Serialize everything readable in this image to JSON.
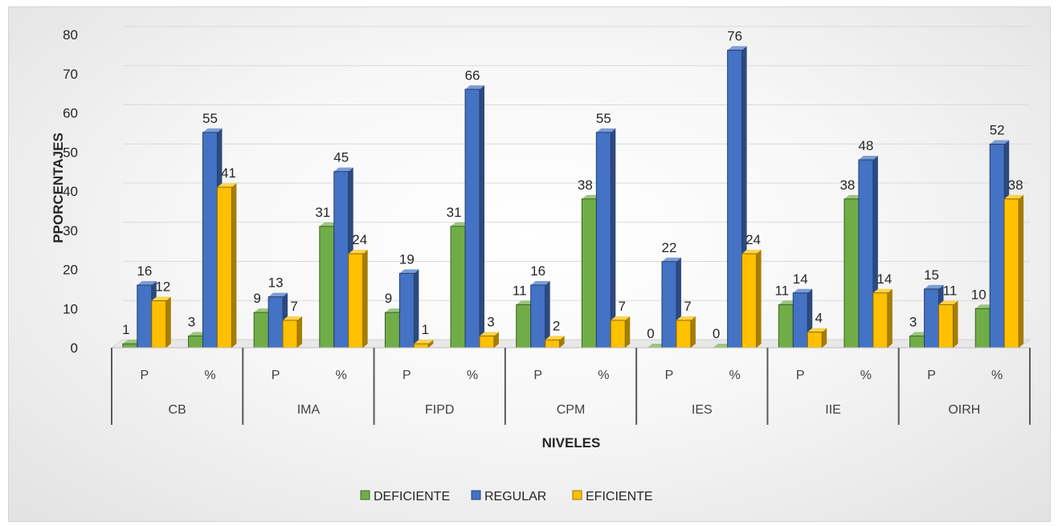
{
  "chart_data": {
    "type": "bar",
    "xlabel": "NIVELES",
    "ylabel": "PPORCENTAJES",
    "ylim": [
      0,
      80
    ],
    "yticks": [
      0,
      10,
      20,
      30,
      40,
      50,
      60,
      70,
      80
    ],
    "groups": [
      "CB",
      "IMA",
      "FIPD",
      "CPM",
      "IES",
      "IIE",
      "OIRH"
    ],
    "subcategories": [
      "P",
      "%"
    ],
    "legend_position": "bottom",
    "series": [
      {
        "name": "DEFICIENTE",
        "color": "#70ad47",
        "values": [
          1,
          3,
          9,
          31,
          9,
          31,
          11,
          38,
          0,
          0,
          11,
          38,
          3,
          10
        ]
      },
      {
        "name": "REGULAR",
        "color": "#4472c4",
        "values": [
          16,
          55,
          13,
          45,
          19,
          66,
          16,
          55,
          22,
          76,
          14,
          48,
          15,
          52
        ]
      },
      {
        "name": "EFICIENTE",
        "color": "#ffc000",
        "values": [
          12,
          41,
          7,
          24,
          1,
          3,
          2,
          7,
          7,
          24,
          4,
          14,
          11,
          38
        ]
      }
    ]
  }
}
